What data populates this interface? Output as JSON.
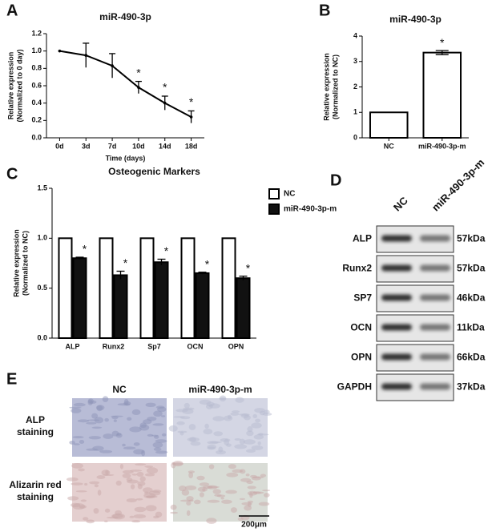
{
  "chart_data": [
    {
      "panel": "A",
      "type": "line",
      "title": "miR-490-3p",
      "ylabel": [
        "Relative expression",
        "(Normalized to 0 day)"
      ],
      "xlabel": "Time (days)",
      "categories": [
        "0d",
        "3d",
        "7d",
        "10d",
        "14d",
        "18d"
      ],
      "values": [
        1.0,
        0.95,
        0.83,
        0.58,
        0.4,
        0.24
      ],
      "errors": [
        null,
        0.14,
        0.14,
        0.07,
        0.08,
        0.07
      ],
      "significance": [
        null,
        null,
        null,
        "*",
        "*",
        "*"
      ],
      "color": "#000000",
      "ylim": [
        0,
        1.2
      ],
      "yticks": [
        {
          "value": 0,
          "label": "0.0"
        },
        0.2,
        0.4,
        0.6,
        0.8,
        {
          "value": 1,
          "label": "1.0"
        },
        1.2
      ]
    },
    {
      "panel": "B",
      "type": "bar",
      "title": "miR-490-3p",
      "ylabel": [
        "Relative expression",
        "(Normalized to NC)"
      ],
      "categories": [
        "NC",
        "miR-490-3p-m"
      ],
      "values": [
        1.0,
        3.35
      ],
      "errors": [
        null,
        0.08
      ],
      "significance": [
        null,
        "*"
      ],
      "color": "#ffffff",
      "ylim": [
        0,
        4
      ],
      "yticks": [
        0,
        1,
        2,
        3,
        4
      ]
    },
    {
      "panel": "C",
      "type": "grouped-bar",
      "title": "Osteogenic Markers",
      "ylabel": [
        "Relative expression",
        "(Normalized to NC)"
      ],
      "categories": [
        "ALP",
        "Runx2",
        "Sp7",
        "OCN",
        "OPN"
      ],
      "series": [
        {
          "name": "NC",
          "color": "#ffffff",
          "values": [
            1,
            1,
            1,
            1,
            1
          ]
        },
        {
          "name": "miR-490-3p-m",
          "color": "#111111",
          "values": [
            0.8,
            0.63,
            0.76,
            0.65,
            0.6
          ],
          "errors": [
            0.01,
            0.04,
            0.03,
            0.01,
            0.02
          ],
          "significance": [
            "*",
            "*",
            "*",
            "*",
            "*"
          ]
        }
      ],
      "ylim": [
        0,
        1.5
      ],
      "yticks": [
        {
          "value": 0,
          "label": "0.0"
        },
        0.5,
        {
          "value": 1,
          "label": "1.0"
        },
        1.5
      ],
      "legend": "top-right"
    }
  ],
  "western_blot": {
    "panel": "D",
    "columns": [
      "NC",
      "miR-490-3p-m"
    ],
    "rows": [
      {
        "label": "ALP",
        "size": "57kDa"
      },
      {
        "label": "Runx2",
        "size": "57kDa"
      },
      {
        "label": "SP7",
        "size": "46kDa"
      },
      {
        "label": "OCN",
        "size": "11kDa"
      },
      {
        "label": "OPN",
        "size": "66kDa"
      },
      {
        "label": "GAPDH",
        "size": "37kDa"
      }
    ]
  },
  "staining": {
    "panel": "E",
    "columns": [
      "NC",
      "miR-490-3p-m"
    ],
    "rows": [
      [
        "ALP",
        "staining"
      ],
      [
        "Alizarin red",
        "staining"
      ]
    ],
    "scale_bar": "200μm"
  }
}
